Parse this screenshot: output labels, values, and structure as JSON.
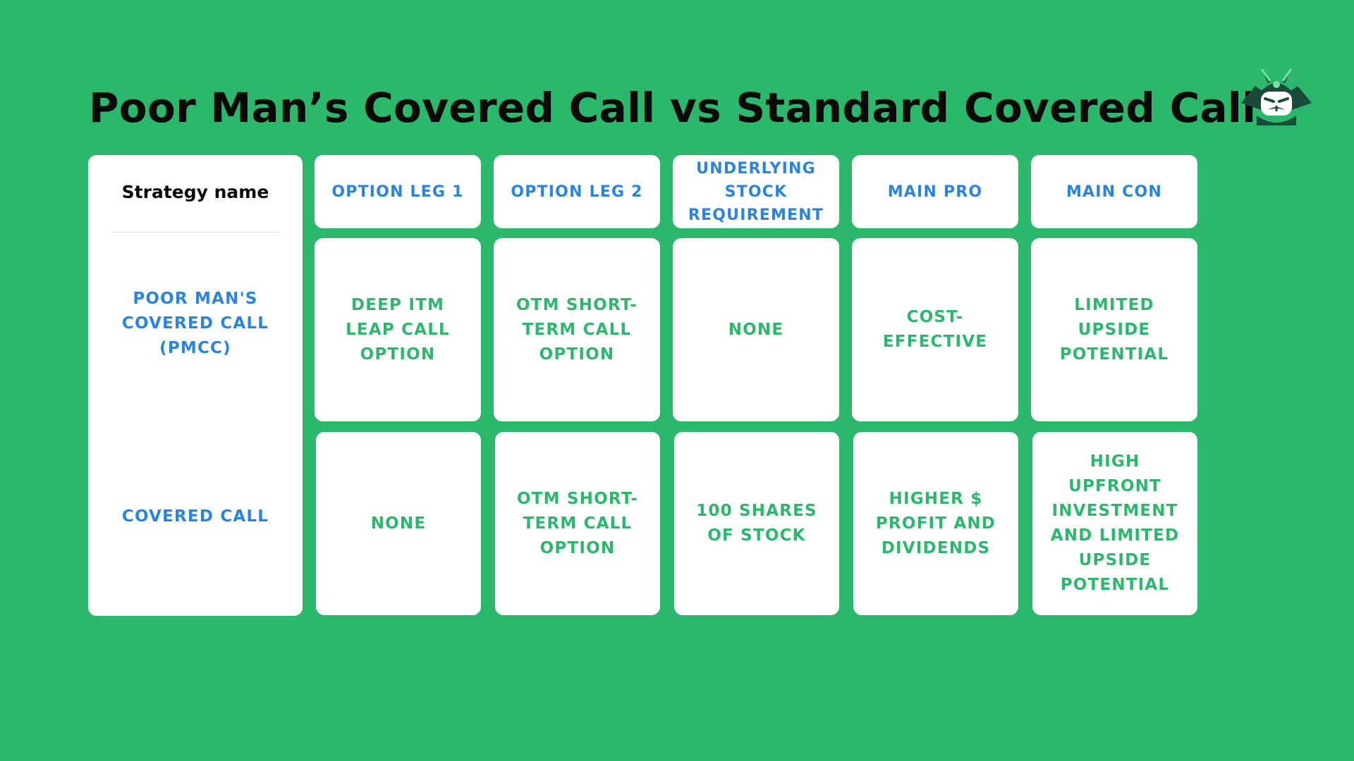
{
  "title": "Poor Man’s Covered Call vs Standard Covered Call",
  "logo": {
    "icon": "samurai-mascot-icon"
  },
  "table": {
    "strategy_header": "Strategy name",
    "headers": [
      "OPTION LEG 1",
      "OPTION LEG 2",
      "UNDERLYING STOCK REQUIREMENT",
      "MAIN PRO",
      "MAIN CON"
    ],
    "rows": [
      {
        "name": "POOR MAN'S COVERED CALL (PMCC)",
        "cells": [
          "DEEP ITM LEAP CALL OPTION",
          "OTM SHORT-TERM CALL OPTION",
          "NONE",
          "COST-EFFECTIVE",
          "LIMITED UPSIDE POTENTIAL"
        ]
      },
      {
        "name": "COVERED CALL",
        "cells": [
          "NONE",
          "OTM SHORT-TERM CALL OPTION",
          "100 SHARES OF STOCK",
          "HIGHER $ PROFIT AND DIVIDENDS",
          "HIGH UPFRONT INVESTMENT AND LIMITED UPSIDE POTENTIAL"
        ]
      }
    ]
  },
  "colors": {
    "background": "#2bb86c",
    "header_text": "#2a84de",
    "cell_text": "#2bb86c",
    "title_text": "#0a0a0a"
  }
}
